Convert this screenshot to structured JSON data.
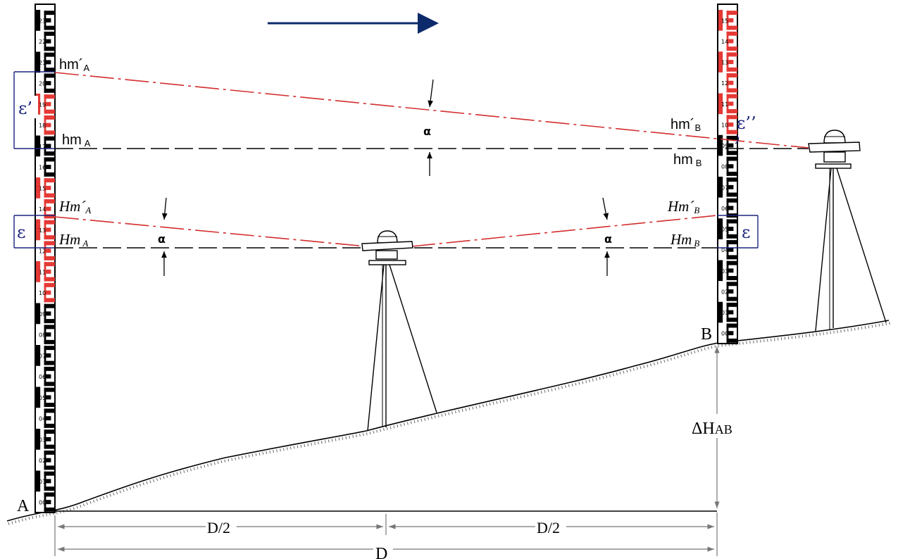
{
  "colors": {
    "sight_line": "#d32f2f",
    "horizontal": "#000000",
    "arrow": "#0d2a6b",
    "staff_black": "#000000",
    "staff_red": "#e53935",
    "bracket": "#1a237e",
    "ground": "#000000",
    "dimension": "#777777"
  },
  "points": {
    "a": "A",
    "b": "B"
  },
  "upper_labels": {
    "hm_prime_a": {
      "main": "hm´",
      "sub": "A"
    },
    "hm_a": {
      "main": "hm",
      "sub": "A"
    },
    "hm_prime_b": {
      "main": "hm´",
      "sub": "B"
    },
    "hm_b": {
      "main": "hm",
      "sub": "B"
    }
  },
  "lower_labels": {
    "Hm_prime_a": {
      "main": "Hm´",
      "sub": "A"
    },
    "Hm_a": {
      "main": "Hm",
      "sub": "A"
    },
    "Hm_prime_b": {
      "main": "Hm´",
      "sub": "B"
    },
    "Hm_b": {
      "main": "Hm",
      "sub": "B"
    }
  },
  "angle_symbol": "α",
  "epsilon": {
    "e_prime": "ε’",
    "e": "ε",
    "e_right": "ε",
    "e_double": "ε’’"
  },
  "delta_h": {
    "main": "ΔH",
    "sub": "AB"
  },
  "dimensions": {
    "half_left": "D/2",
    "half_right": "D/2",
    "full": "D"
  },
  "staff_a_ticks": [
    "23",
    "22",
    "21",
    "20",
    "19",
    "18",
    "17",
    "16",
    "15",
    "14",
    "13",
    "12",
    "11",
    "10",
    "09",
    "08",
    "07",
    "06",
    "05",
    "04",
    "03",
    "02",
    "01",
    "00"
  ],
  "staff_b_ticks": [
    "15",
    "14",
    "13",
    "12",
    "11",
    "10",
    "09",
    "08",
    "07",
    "06",
    "05",
    "04",
    "03",
    "02",
    "01",
    "00"
  ]
}
